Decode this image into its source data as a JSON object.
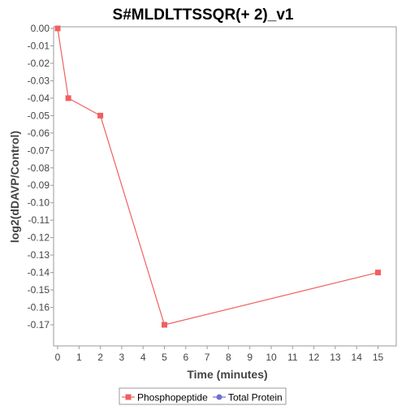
{
  "chart_data": {
    "type": "line",
    "title": "S#MLDLTTSSQR(+ 2)_v1",
    "xlabel": "Time (minutes)",
    "ylabel": "log2(dDAVP/Control)",
    "xlim": [
      0,
      15.7
    ],
    "ylim": [
      -0.18,
      0.0
    ],
    "x_ticks": [
      "0",
      "1",
      "2",
      "3",
      "4",
      "5",
      "6",
      "7",
      "8",
      "9",
      "10",
      "11",
      "12",
      "13",
      "14",
      "15"
    ],
    "y_ticks": [
      "0.00",
      "-0.01",
      "-0.02",
      "-0.03",
      "-0.04",
      "-0.05",
      "-0.06",
      "-0.07",
      "-0.08",
      "-0.09",
      "-0.10",
      "-0.11",
      "-0.12",
      "-0.13",
      "-0.14",
      "-0.15",
      "-0.16",
      "-0.17"
    ],
    "grid": false,
    "legend_position": "bottom",
    "series": [
      {
        "name": "Phosphopeptide",
        "color": "#f06060",
        "marker": "square",
        "x": [
          0,
          0.5,
          2,
          5,
          15
        ],
        "y": [
          0.0,
          -0.04,
          -0.05,
          -0.17,
          -0.14
        ]
      },
      {
        "name": "Total Protein",
        "color": "#6f6fd6",
        "marker": "circle",
        "x": [],
        "y": []
      }
    ]
  }
}
